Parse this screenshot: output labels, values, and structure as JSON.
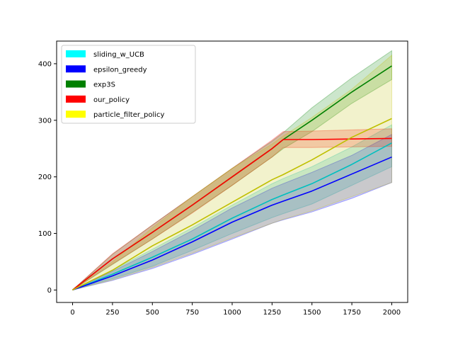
{
  "chart_data": {
    "type": "line",
    "title": "",
    "xlabel": "",
    "ylabel": "",
    "xlim": [
      -100,
      2100
    ],
    "ylim": [
      -22,
      440
    ],
    "xticks": [
      0,
      250,
      500,
      750,
      1000,
      1250,
      1500,
      1750,
      2000
    ],
    "yticks": [
      0,
      100,
      200,
      300,
      400
    ],
    "x": [
      0,
      250,
      500,
      750,
      1000,
      1250,
      1320,
      1500,
      1750,
      2000
    ],
    "grid": false,
    "legend_position": "upper-left",
    "series": [
      {
        "name": "sliding_w_UCB",
        "color": "#00bfbf",
        "legend_color": "#00ffff",
        "values": [
          0,
          28,
          58,
          90,
          127,
          160,
          168,
          188,
          222,
          260
        ],
        "lower": [
          0,
          20,
          42,
          70,
          100,
          128,
          135,
          152,
          185,
          218
        ],
        "upper": [
          0,
          35,
          72,
          110,
          150,
          188,
          197,
          218,
          253,
          292
        ]
      },
      {
        "name": "epsilon_greedy",
        "color": "#0000ff",
        "legend_color": "#0000ff",
        "values": [
          0,
          25,
          53,
          85,
          120,
          150,
          157,
          175,
          205,
          235
        ],
        "lower": [
          0,
          17,
          38,
          63,
          90,
          118,
          124,
          138,
          162,
          190
        ],
        "upper": [
          0,
          33,
          68,
          105,
          145,
          180,
          188,
          208,
          238,
          275
        ]
      },
      {
        "name": "exp3S",
        "color": "#008000",
        "legend_color": "#008000",
        "values": [
          0,
          55,
          102,
          150,
          200,
          250,
          266,
          300,
          350,
          396
        ],
        "lower": [
          0,
          45,
          90,
          137,
          185,
          235,
          250,
          280,
          330,
          372
        ],
        "upper": [
          0,
          63,
          115,
          165,
          215,
          263,
          278,
          322,
          375,
          423
        ]
      },
      {
        "name": "our_policy",
        "color": "#ff0000",
        "legend_color": "#ff0000",
        "values": [
          0,
          55,
          102,
          150,
          200,
          250,
          266,
          266,
          267,
          268
        ],
        "lower": [
          0,
          46,
          90,
          136,
          185,
          235,
          252,
          252,
          253,
          254
        ],
        "upper": [
          0,
          64,
          115,
          165,
          215,
          265,
          280,
          281,
          283,
          285
        ]
      },
      {
        "name": "particle_filter_policy",
        "color": "#bfbf00",
        "legend_color": "#ffff00",
        "values": [
          0,
          35,
          78,
          115,
          155,
          195,
          204,
          230,
          270,
          303
        ],
        "lower": [
          0,
          18,
          40,
          65,
          92,
          118,
          125,
          140,
          165,
          190
        ],
        "upper": [
          0,
          50,
          110,
          165,
          215,
          258,
          272,
          305,
          355,
          415
        ]
      }
    ]
  }
}
